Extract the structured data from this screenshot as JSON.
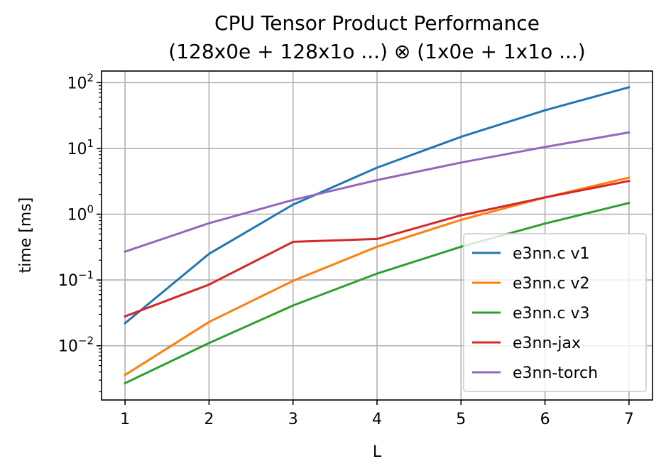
{
  "chart_data": {
    "type": "line",
    "title_line1": "CPU Tensor Product Performance",
    "title_line2": "(128x0e + 128x1o ...) ⊗ (1x0e + 1x1o ...)",
    "xlabel": "L",
    "ylabel": "time [ms]",
    "yscale": "log",
    "x": [
      1,
      2,
      3,
      4,
      5,
      6,
      7
    ],
    "x_ticks": [
      "1",
      "2",
      "3",
      "4",
      "5",
      "6",
      "7"
    ],
    "y_ticks": [
      {
        "base": "10",
        "exp": "−2",
        "value": 0.01
      },
      {
        "base": "10",
        "exp": "−1",
        "value": 0.1
      },
      {
        "base": "10",
        "exp": "0",
        "value": 1
      },
      {
        "base": "10",
        "exp": "1",
        "value": 10
      },
      {
        "base": "10",
        "exp": "2",
        "value": 100
      }
    ],
    "xlim": [
      0.72,
      7.28
    ],
    "ylim": [
      0.0015,
      150
    ],
    "grid": true,
    "legend_position": "lower right",
    "series": [
      {
        "name": "e3nn.c v1",
        "color": "#1f77b4",
        "values": [
          0.022,
          0.25,
          1.4,
          5.1,
          15,
          38,
          85
        ]
      },
      {
        "name": "e3nn.c v2",
        "color": "#ff7f0e",
        "values": [
          0.0036,
          0.023,
          0.097,
          0.32,
          0.82,
          1.8,
          3.6
        ]
      },
      {
        "name": "e3nn.c v3",
        "color": "#2ca02c",
        "values": [
          0.0027,
          0.011,
          0.041,
          0.125,
          0.32,
          0.72,
          1.48
        ]
      },
      {
        "name": "e3nn-jax",
        "color": "#d62728",
        "values": [
          0.028,
          0.085,
          0.38,
          0.42,
          0.96,
          1.8,
          3.2
        ]
      },
      {
        "name": "e3nn-torch",
        "color": "#9467bd",
        "values": [
          0.27,
          0.73,
          1.65,
          3.3,
          6.1,
          10.5,
          17.5
        ]
      }
    ]
  }
}
